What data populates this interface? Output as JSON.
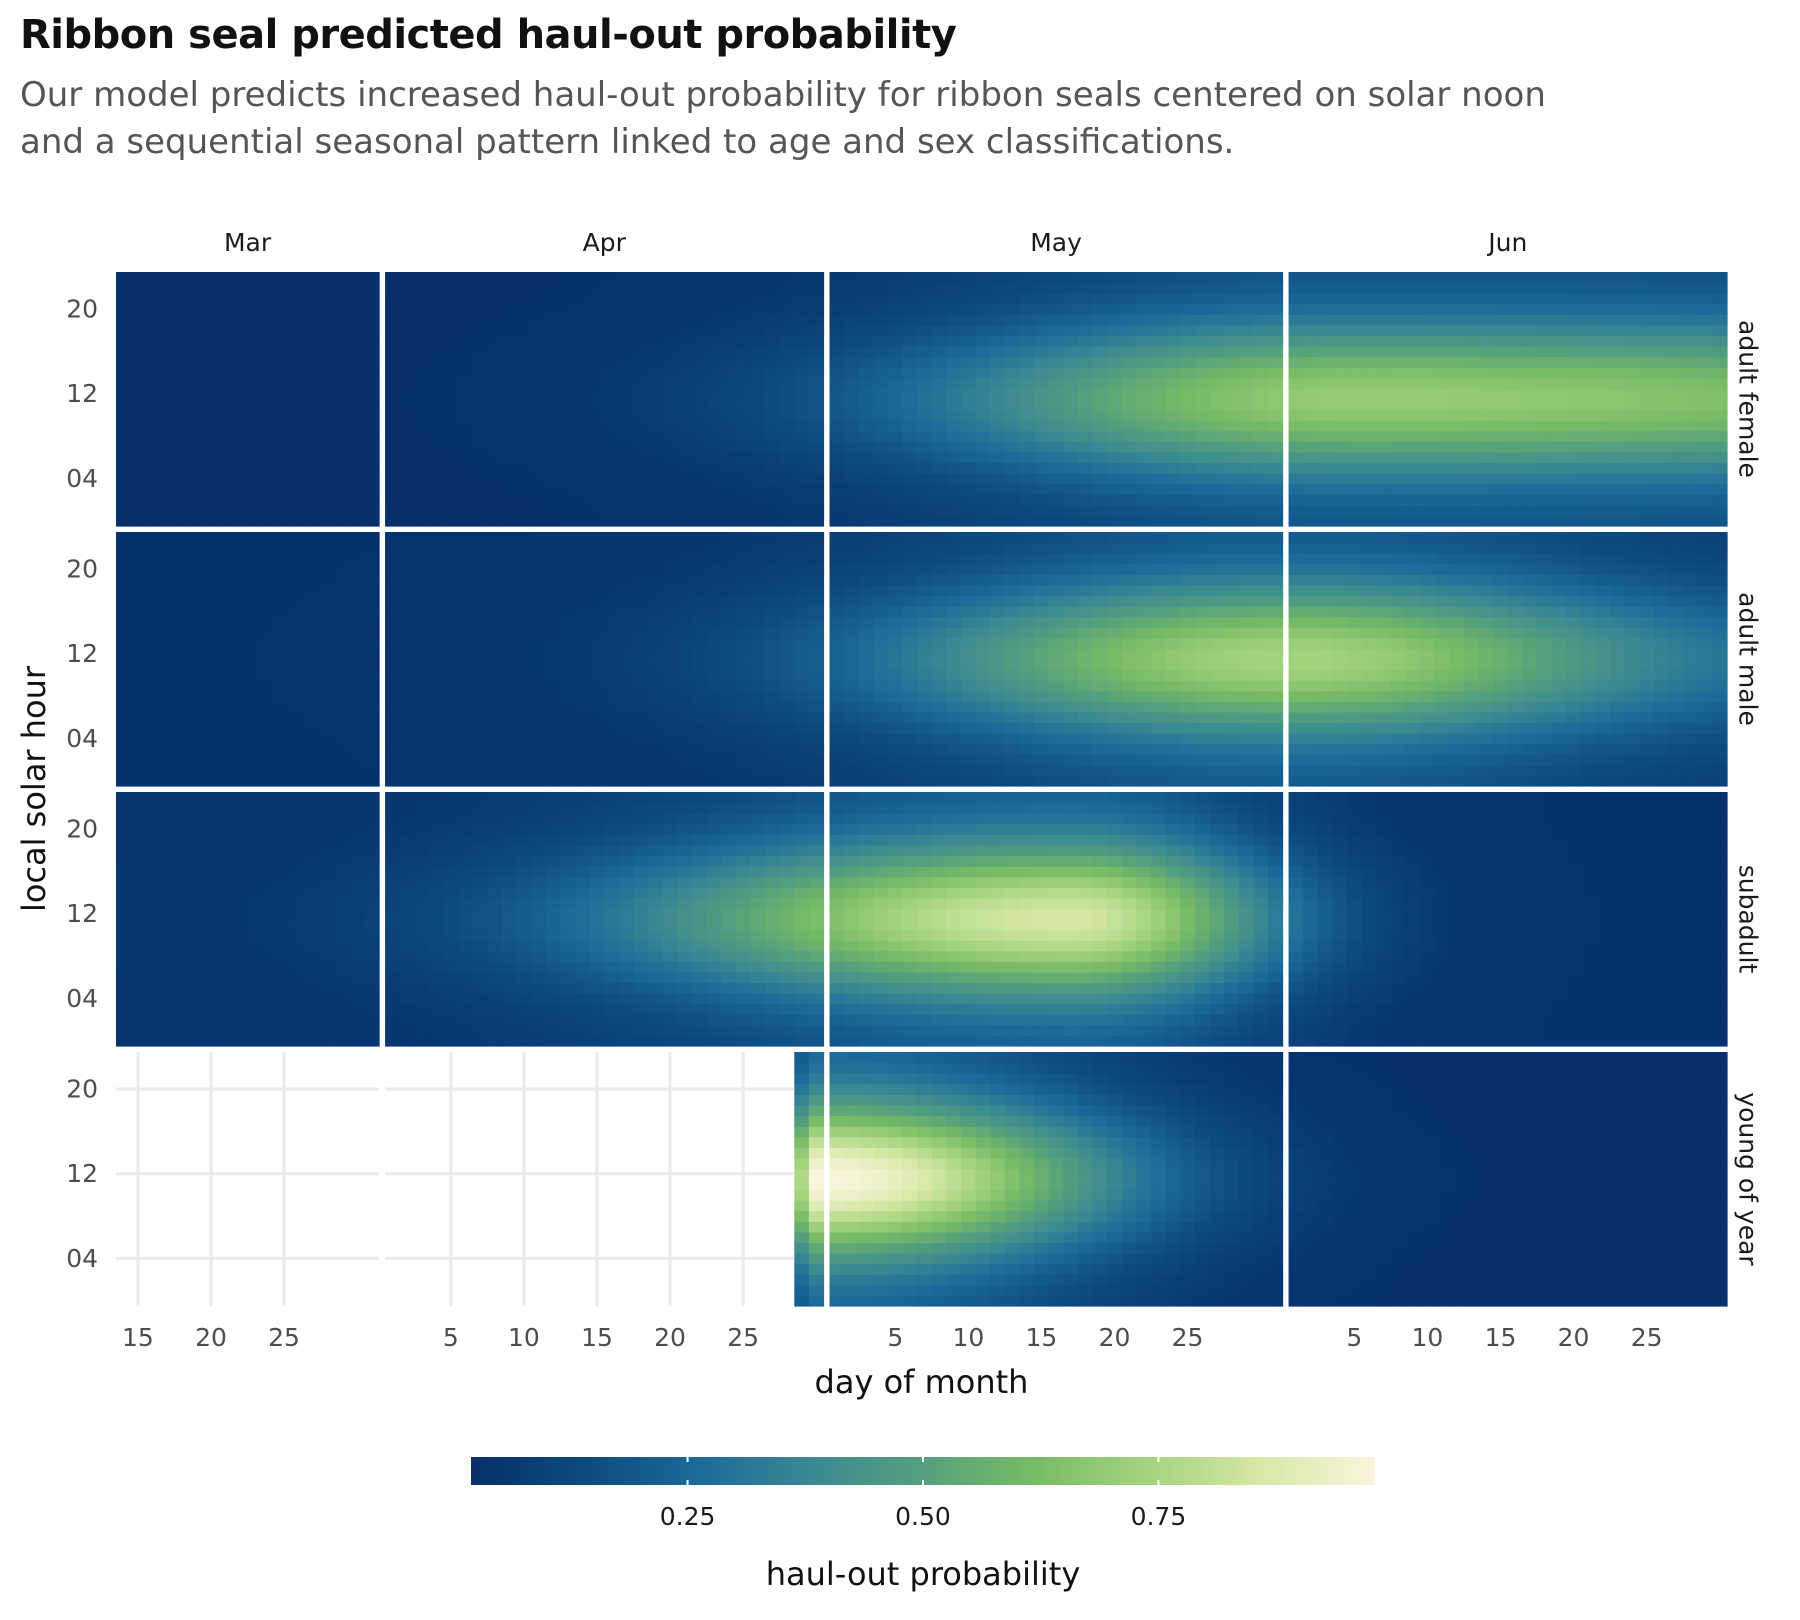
{
  "title": "Ribbon seal predicted haul-out probability",
  "subtitle_lines": [
    "Our model predicts increased haul-out probability for ribbon seals centered on solar noon",
    "and a sequential seasonal pattern linked to age and sex classifications."
  ],
  "chart_data": {
    "type": "heatmap",
    "facet_columns": [
      {
        "label": "Mar",
        "day_range": [
          14,
          31
        ],
        "ticks": [
          15,
          20,
          25
        ]
      },
      {
        "label": "Apr",
        "day_range": [
          1,
          30
        ],
        "ticks": [
          5,
          10,
          15,
          20,
          25
        ]
      },
      {
        "label": "May",
        "day_range": [
          1,
          31
        ],
        "ticks": [
          5,
          10,
          15,
          20,
          25
        ]
      },
      {
        "label": "Jun",
        "day_range": [
          1,
          30
        ],
        "ticks": [
          5,
          10,
          15,
          20,
          25
        ]
      }
    ],
    "facet_rows": [
      {
        "label": "adult female",
        "start": [
          1,
          1
        ],
        "peak_date": [
          6,
          5
        ],
        "peak": 0.7,
        "floor": 0.02,
        "rise_days": 30,
        "fall_days": 45,
        "jun_end_peak": 0.5
      },
      {
        "label": "adult male",
        "start": [
          1,
          1
        ],
        "peak_date": [
          6,
          1
        ],
        "peak": 0.74,
        "floor": 0.03,
        "rise_days": 28,
        "fall_days": 22,
        "jun_end_peak": 0.22
      },
      {
        "label": "subadult",
        "start": [
          1,
          1
        ],
        "peak_date": [
          5,
          17
        ],
        "peak": 0.86,
        "floor": 0.03,
        "rise_days": 30,
        "fall_days": 14,
        "jun_end_peak": 0.03
      },
      {
        "label": "young of year",
        "start": [
          4,
          29
        ],
        "peak_date": [
          4,
          30
        ],
        "peak": 0.98,
        "floor": 0.02,
        "rise_days": 2,
        "fall_days": 20,
        "jun_end_peak": 0.02
      }
    ],
    "y_ticks": [
      "04",
      "12",
      "20"
    ],
    "ylabel": "local solar hour",
    "xlabel": "day of month",
    "legend": {
      "title": "haul-out probability",
      "ticks": [
        "0.25",
        "0.50",
        "0.75"
      ],
      "range": [
        0.02,
        0.98
      ],
      "position": "bottom"
    },
    "colorscale": [
      "#08306b",
      "#0c4a80",
      "#1b6a9a",
      "#3a8993",
      "#55a07c",
      "#78bb65",
      "#a4d37e",
      "#d6e8a6",
      "#faf5dc"
    ],
    "grid": true
  }
}
